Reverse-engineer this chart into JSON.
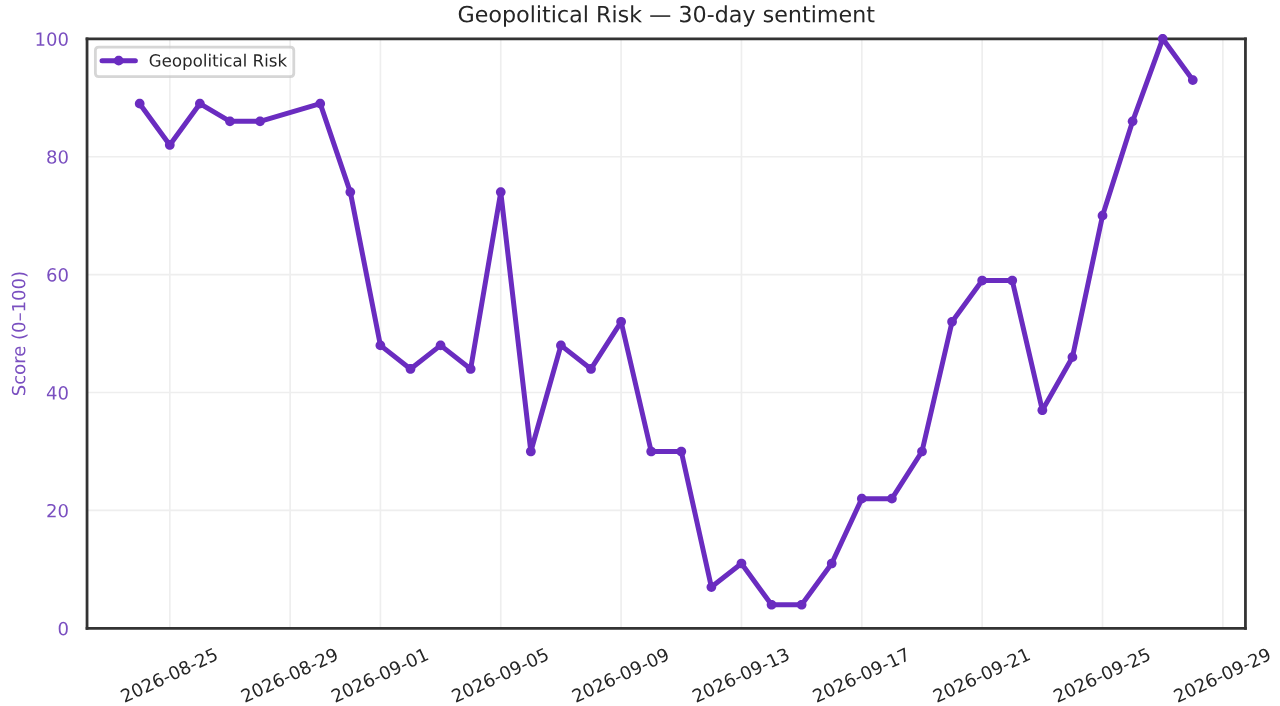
{
  "chart_data": {
    "type": "line",
    "title": "Geopolitical Risk — 30-day sentiment",
    "ylabel": "Score (0–100)",
    "x": [
      "2026-08-24",
      "2026-08-25",
      "2026-08-26",
      "2026-08-27",
      "2026-08-28",
      "2026-08-30",
      "2026-08-31",
      "2026-09-01",
      "2026-09-02",
      "2026-09-03",
      "2026-09-04",
      "2026-09-05",
      "2026-09-06",
      "2026-09-07",
      "2026-09-08",
      "2026-09-09",
      "2026-09-10",
      "2026-09-11",
      "2026-09-12",
      "2026-09-13",
      "2026-09-14",
      "2026-09-15",
      "2026-09-16",
      "2026-09-17",
      "2026-09-18",
      "2026-09-19",
      "2026-09-20",
      "2026-09-21",
      "2026-09-22",
      "2026-09-23",
      "2026-09-24",
      "2026-09-25",
      "2026-09-26",
      "2026-09-27",
      "2026-09-28"
    ],
    "series": [
      {
        "name": "Geopolitical Risk",
        "color": "#6a2cc0",
        "values": [
          89,
          82,
          89,
          86,
          86,
          89,
          74,
          48,
          44,
          48,
          44,
          74,
          30,
          48,
          44,
          52,
          30,
          30,
          7,
          11,
          4,
          4,
          11,
          22,
          22,
          30,
          52,
          59,
          59,
          37,
          46,
          70,
          86,
          100,
          93
        ]
      }
    ],
    "xlim": [
      "2026-08-22T06:00",
      "2026-09-29T18:00"
    ],
    "xticks": [
      "2026-08-25",
      "2026-08-29",
      "2026-09-01",
      "2026-09-05",
      "2026-09-09",
      "2026-09-13",
      "2026-09-17",
      "2026-09-21",
      "2026-09-25",
      "2026-09-29"
    ],
    "ylim": [
      0,
      100
    ],
    "yticks": [
      0,
      20,
      40,
      60,
      80,
      100
    ],
    "grid": true,
    "legend": "top left",
    "marker": "circle",
    "line_style": "solid"
  }
}
